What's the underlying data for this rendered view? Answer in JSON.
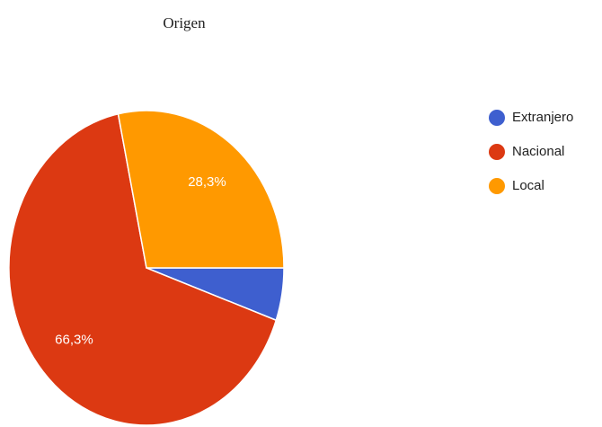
{
  "chart_data": {
    "type": "pie",
    "title": "Origen",
    "categories": [
      "Extranjero",
      "Nacional",
      "Local"
    ],
    "values": [
      5.4,
      66.3,
      28.3
    ],
    "value_labels": [
      null,
      "66,3%",
      "28,3%"
    ],
    "colors": [
      "#3e5fcf",
      "#dc3912",
      "#ff9900"
    ],
    "legend": "right"
  }
}
